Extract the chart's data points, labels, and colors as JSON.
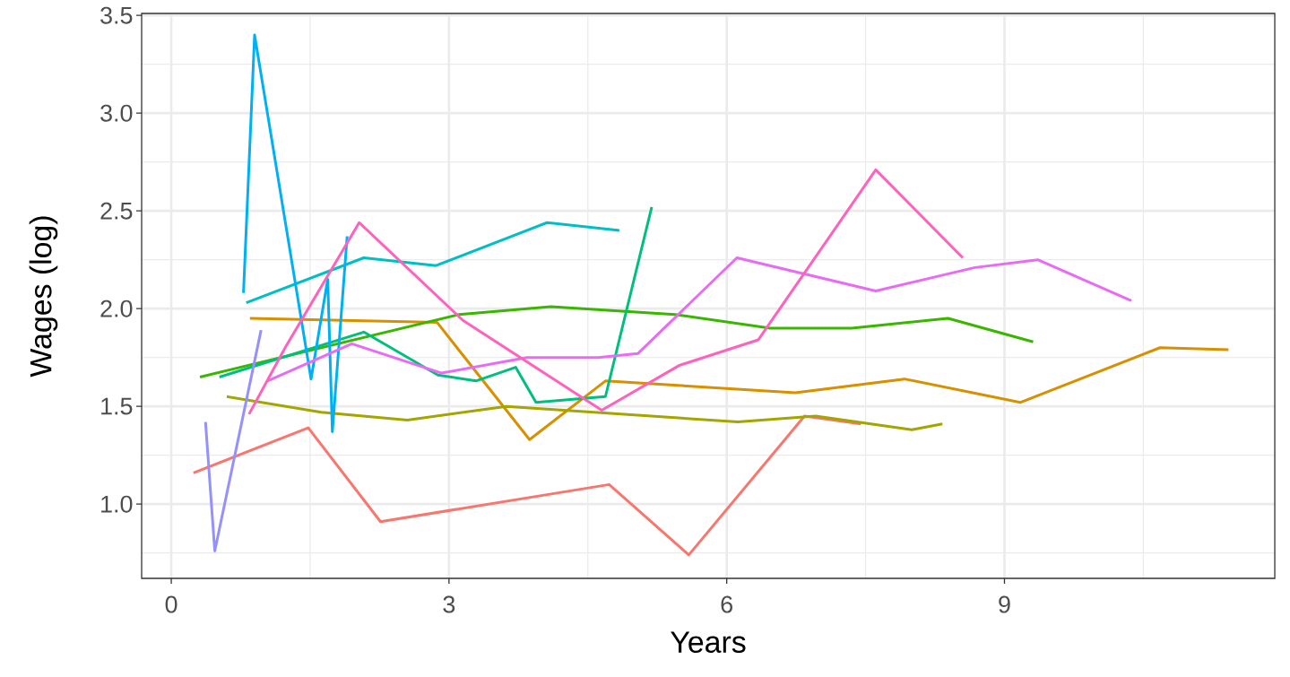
{
  "chart_data": {
    "type": "line",
    "xlabel": "Years",
    "ylabel": "Wages (log)",
    "xlim": [
      -0.32,
      11.92
    ],
    "ylim": [
      0.62,
      3.51
    ],
    "xticks": [
      0,
      3,
      6,
      9
    ],
    "yticks": [
      {
        "value": 1.0,
        "label": "1.0"
      },
      {
        "value": 1.5,
        "label": "1.5"
      },
      {
        "value": 2.0,
        "label": "2.0"
      },
      {
        "value": 2.5,
        "label": "2.5"
      },
      {
        "value": 3.0,
        "label": "3.0"
      },
      {
        "value": 3.5,
        "label": "3.5"
      }
    ],
    "grid": true,
    "marker": "none",
    "line_style": "solid",
    "series": [
      {
        "color": "#f8766d",
        "x": [
          0.24,
          1.48,
          2.26,
          4.73,
          5.59,
          6.84,
          7.45
        ],
        "values": [
          1.16,
          1.39,
          0.91,
          1.1,
          0.74,
          1.45,
          1.41
        ]
      },
      {
        "color": "#d89000",
        "x": [
          0.85,
          2.87,
          3.87,
          4.69,
          6.74,
          7.92,
          9.17,
          10.68,
          11.42
        ],
        "values": [
          1.95,
          1.93,
          1.33,
          1.63,
          1.57,
          1.64,
          1.52,
          1.8,
          1.79
        ]
      },
      {
        "color": "#a3a500",
        "x": [
          0.6,
          1.62,
          2.55,
          3.62,
          6.12,
          6.96,
          8.0,
          8.33
        ],
        "values": [
          1.55,
          1.47,
          1.43,
          1.5,
          1.42,
          1.45,
          1.38,
          1.41
        ]
      },
      {
        "color": "#39b600",
        "x": [
          0.31,
          3.11,
          4.1,
          5.44,
          6.47,
          7.35,
          8.39,
          9.31
        ],
        "values": [
          1.65,
          1.97,
          2.01,
          1.97,
          1.9,
          1.9,
          1.95,
          1.83
        ]
      },
      {
        "color": "#00bf7d",
        "x": [
          0.52,
          2.08,
          2.88,
          3.29,
          3.72,
          3.94,
          4.69,
          5.19
        ],
        "values": [
          1.65,
          1.88,
          1.66,
          1.63,
          1.7,
          1.52,
          1.55,
          2.52
        ]
      },
      {
        "color": "#00bfc4",
        "x": [
          0.81,
          2.08,
          2.86,
          4.06,
          4.84
        ],
        "values": [
          2.03,
          2.26,
          2.22,
          2.44,
          2.4
        ]
      },
      {
        "color": "#00b0f6",
        "x": [
          0.78,
          0.9,
          1.51,
          1.69,
          1.74,
          1.9
        ],
        "values": [
          2.08,
          3.4,
          1.64,
          2.15,
          1.37,
          2.37
        ]
      },
      {
        "color": "#9590ff",
        "x": [
          0.37,
          0.47,
          0.97
        ],
        "values": [
          1.42,
          0.76,
          1.89
        ]
      },
      {
        "color": "#e76bf3",
        "x": [
          1.04,
          1.95,
          2.92,
          3.84,
          4.61,
          5.04,
          6.11,
          7.61,
          8.68,
          9.36,
          10.37
        ],
        "values": [
          1.63,
          1.82,
          1.67,
          1.75,
          1.75,
          1.77,
          2.26,
          2.09,
          2.21,
          2.25,
          2.04
        ]
      },
      {
        "color": "#ff62bc",
        "x": [
          0.84,
          1.23,
          2.03,
          3.15,
          4.65,
          5.49,
          6.34,
          7.61,
          8.55
        ],
        "values": [
          1.46,
          1.8,
          2.44,
          1.94,
          1.48,
          1.71,
          1.84,
          2.71,
          2.26
        ]
      }
    ]
  }
}
